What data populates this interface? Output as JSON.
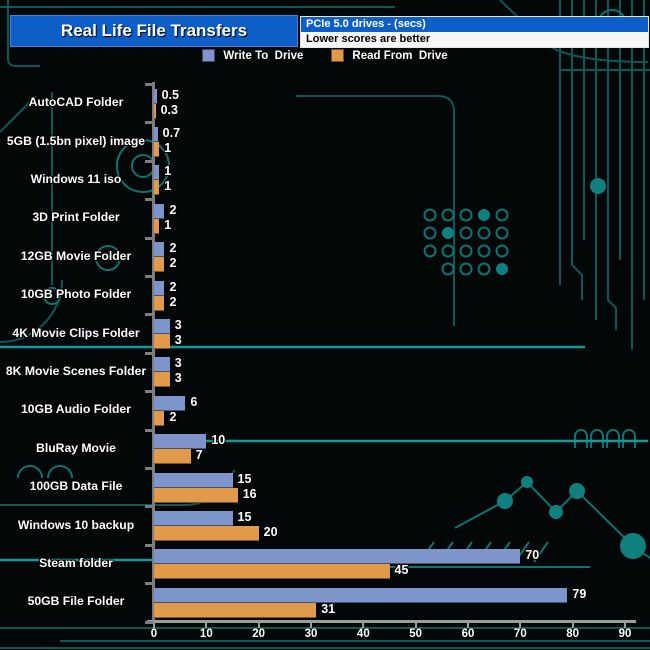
{
  "header": {
    "title": "Real Life File Transfers",
    "strip_top": "PCIe 5.0 drives - (secs)",
    "strip_bottom": "Lower scores are better"
  },
  "legend": {
    "items": [
      {
        "label": "Write To  Drive",
        "color": "#7e95cc"
      },
      {
        "label": "Read From  Drive",
        "color": "#e09a4a"
      }
    ]
  },
  "chart_data": {
    "type": "bar",
    "orientation": "horizontal",
    "title": "Real Life File Transfers",
    "subtitle": "PCIe 5.0 drives - (secs)",
    "note": "Lower scores are better",
    "categories": [
      "AutoCAD Folder",
      "5GB (1.5bn pixel) image",
      "Windows 11 iso",
      "3D Print Folder",
      "12GB Movie Folder",
      "10GB Photo Folder",
      "4K Movie Clips Folder",
      "8K Movie Scenes Folder",
      "10GB Audio Folder",
      "BluRay Movie",
      "100GB Data File",
      "Windows 10 backup",
      "Steam folder",
      "50GB File Folder"
    ],
    "series": [
      {
        "name": "Write To  Drive",
        "color": "#7e95cc",
        "values": [
          0.5,
          0.7,
          1,
          2,
          2,
          2,
          3,
          3,
          6,
          10,
          15,
          15,
          70,
          79
        ]
      },
      {
        "name": "Read From  Drive",
        "color": "#e09a4a",
        "values": [
          0.3,
          1,
          1,
          1,
          2,
          2,
          3,
          3,
          2,
          7,
          16,
          20,
          45,
          31
        ]
      }
    ],
    "xlim": [
      0,
      90
    ],
    "xticks": [
      0,
      10,
      20,
      30,
      40,
      50,
      60,
      70,
      80,
      90
    ],
    "value_labels": true,
    "grid": false,
    "legend_position": "top"
  },
  "colors": {
    "background": "#040707",
    "header_blue": "#0d5ec6",
    "circuit_teal": "#0d6e6e",
    "axis_gray": "#7d7d7d",
    "text_white": "#ffffff"
  }
}
